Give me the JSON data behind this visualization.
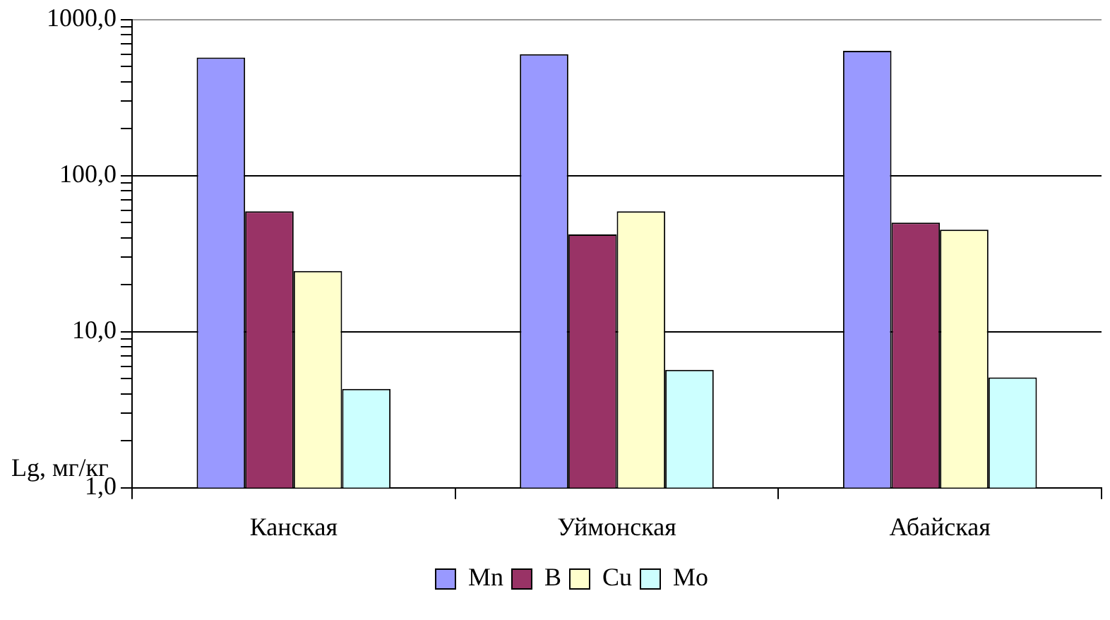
{
  "chart_data": {
    "type": "bar",
    "ylabel": "Lg, мг/кг",
    "categories": [
      "Канская",
      "Уймонская",
      "Абайская"
    ],
    "series": [
      {
        "name": "Mn",
        "color": "#9999ff",
        "values": [
          570,
          600,
          630
        ]
      },
      {
        "name": "B",
        "color": "#993366",
        "values": [
          59,
          42,
          50
        ]
      },
      {
        "name": "Cu",
        "color": "#ffffcc",
        "values": [
          24.5,
          59,
          45
        ]
      },
      {
        "name": "Mo",
        "color": "#ccffff",
        "values": [
          4.3,
          5.7,
          5.1
        ]
      }
    ],
    "log": "y",
    "ylim": [
      1,
      1000
    ],
    "yticks": [
      {
        "value": 1,
        "label": "1,0"
      },
      {
        "value": 2,
        "label": null
      },
      {
        "value": 3,
        "label": null
      },
      {
        "value": 4,
        "label": null
      },
      {
        "value": 5,
        "label": null
      },
      {
        "value": 6,
        "label": null
      },
      {
        "value": 7,
        "label": null
      },
      {
        "value": 8,
        "label": null
      },
      {
        "value": 9,
        "label": null
      },
      {
        "value": 10,
        "label": "10,0"
      },
      {
        "value": 20,
        "label": null
      },
      {
        "value": 30,
        "label": null
      },
      {
        "value": 40,
        "label": null
      },
      {
        "value": 50,
        "label": null
      },
      {
        "value": 60,
        "label": null
      },
      {
        "value": 70,
        "label": null
      },
      {
        "value": 80,
        "label": null
      },
      {
        "value": 90,
        "label": null
      },
      {
        "value": 100,
        "label": "100,0"
      },
      {
        "value": 200,
        "label": null
      },
      {
        "value": 300,
        "label": null
      },
      {
        "value": 400,
        "label": null
      },
      {
        "value": 500,
        "label": null
      },
      {
        "value": 600,
        "label": null
      },
      {
        "value": 700,
        "label": null
      },
      {
        "value": 800,
        "label": null
      },
      {
        "value": 900,
        "label": null
      },
      {
        "value": 1000,
        "label": "1000,0"
      }
    ],
    "grid": "y",
    "legend": "bottom"
  }
}
